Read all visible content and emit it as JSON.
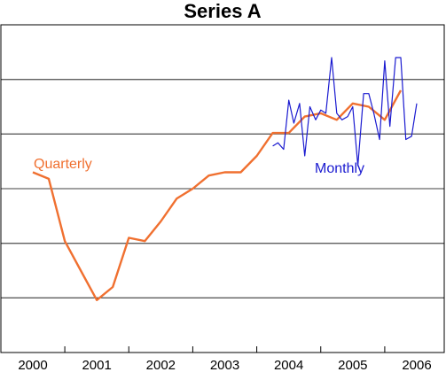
{
  "chart_data": {
    "type": "line",
    "title": "Series A",
    "xlabel": "",
    "ylabel": "",
    "xlim": [
      2000,
      2006
    ],
    "x_ticks": [
      "2000",
      "2001",
      "2002",
      "2003",
      "2004",
      "2005",
      "2006"
    ],
    "y_ticks": [],
    "grid": true,
    "colors": {
      "quarterly": "#f07030",
      "monthly": "#1a1ad0",
      "grid": "#000000"
    },
    "annotations": [
      {
        "text": "Quarterly",
        "series": "quarterly"
      },
      {
        "text": "Monthly",
        "series": "monthly"
      }
    ],
    "series": [
      {
        "key": "quarterly",
        "name": "",
        "color": "#f07030",
        "points": [
          [
            2000.0,
            55
          ],
          [
            2000.25,
            53
          ],
          [
            2000.5,
            34
          ],
          [
            2000.75,
            25
          ],
          [
            2001.0,
            16
          ],
          [
            2001.25,
            20
          ],
          [
            2001.5,
            35
          ],
          [
            2001.75,
            34
          ],
          [
            2002.0,
            40
          ],
          [
            2002.25,
            47
          ],
          [
            2002.5,
            50
          ],
          [
            2002.75,
            54
          ],
          [
            2003.0,
            55
          ],
          [
            2003.25,
            55
          ],
          [
            2003.5,
            60
          ],
          [
            2003.75,
            67
          ],
          [
            2004.0,
            67
          ],
          [
            2004.25,
            72
          ],
          [
            2004.5,
            73
          ],
          [
            2004.75,
            71
          ],
          [
            2005.0,
            76
          ],
          [
            2005.25,
            75
          ],
          [
            2005.5,
            71
          ],
          [
            2005.75,
            80
          ]
        ]
      },
      {
        "key": "monthly",
        "name": "",
        "color": "#1a1ad0",
        "points": [
          [
            2003.75,
            63
          ],
          [
            2003.83,
            64
          ],
          [
            2003.92,
            62
          ],
          [
            2004.0,
            77
          ],
          [
            2004.08,
            70
          ],
          [
            2004.17,
            76
          ],
          [
            2004.25,
            60
          ],
          [
            2004.33,
            75
          ],
          [
            2004.42,
            71
          ],
          [
            2004.5,
            74
          ],
          [
            2004.58,
            73
          ],
          [
            2004.67,
            90
          ],
          [
            2004.75,
            73
          ],
          [
            2004.83,
            71
          ],
          [
            2004.92,
            72
          ],
          [
            2005.0,
            75
          ],
          [
            2005.08,
            57
          ],
          [
            2005.17,
            79
          ],
          [
            2005.25,
            79
          ],
          [
            2005.33,
            73
          ],
          [
            2005.42,
            65
          ],
          [
            2005.5,
            89
          ],
          [
            2005.58,
            69
          ],
          [
            2005.67,
            90
          ],
          [
            2005.75,
            90
          ],
          [
            2005.83,
            65
          ],
          [
            2005.92,
            66
          ],
          [
            2006.0,
            76
          ]
        ]
      }
    ]
  }
}
